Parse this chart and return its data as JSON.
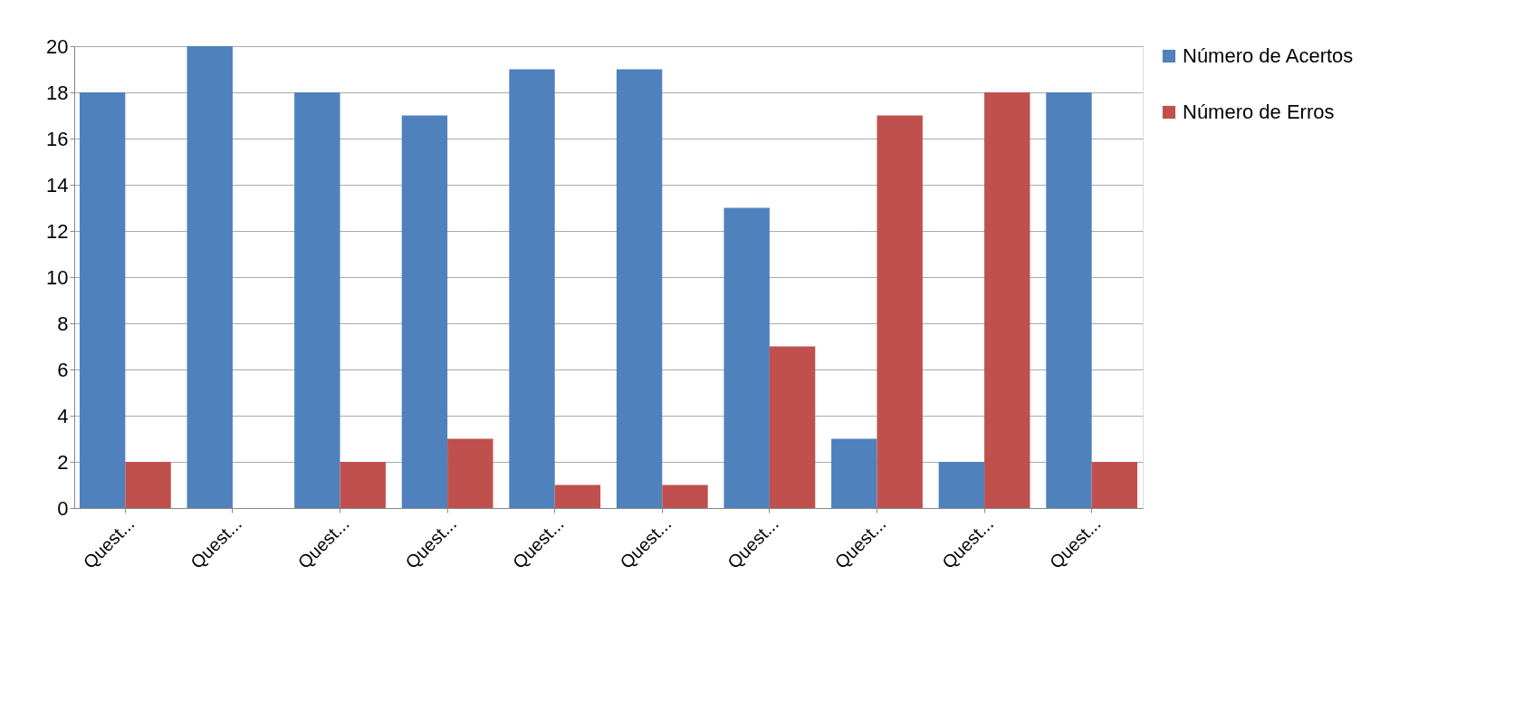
{
  "chart_data": {
    "type": "bar",
    "categories": [
      "Quest...",
      "Quest...",
      "Quest...",
      "Quest...",
      "Quest...",
      "Quest...",
      "Quest...",
      "Quest...",
      "Quest...",
      "Quest..."
    ],
    "series": [
      {
        "name": "Número de Acertos",
        "color": "#4f81bd",
        "values": [
          18,
          20,
          18,
          17,
          19,
          19,
          13,
          3,
          2,
          18
        ]
      },
      {
        "name": "Número de Erros",
        "color": "#c0504d",
        "values": [
          2,
          0,
          2,
          3,
          1,
          1,
          7,
          17,
          18,
          2
        ]
      }
    ],
    "ylim": [
      0,
      20
    ],
    "yticks": [
      0,
      2,
      4,
      6,
      8,
      10,
      12,
      14,
      16,
      18,
      20
    ],
    "grid": "y",
    "legend": "right"
  }
}
